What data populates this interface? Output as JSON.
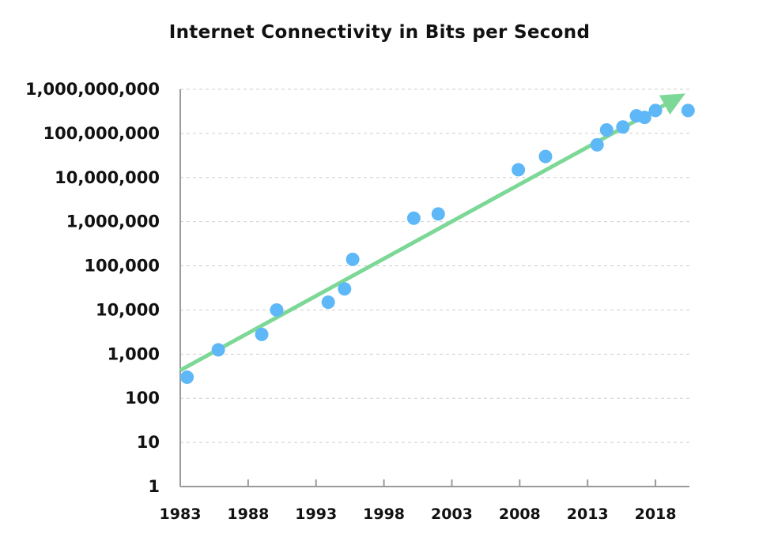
{
  "chart_data": {
    "type": "scatter",
    "title": "Internet Connectivity in Bits per Second",
    "xlabel": "",
    "ylabel": "",
    "y_scale": "log",
    "xlim": [
      1983,
      2020.5
    ],
    "ylim": [
      1,
      1000000000
    ],
    "grid": true,
    "legend": "none",
    "x_ticks": [
      1983,
      1988,
      1993,
      1998,
      2003,
      2008,
      2013,
      2018
    ],
    "x_tick_labels": [
      "1983",
      "1988",
      "1993",
      "1998",
      "2003",
      "2008",
      "2013",
      "2018"
    ],
    "y_ticks": [
      1,
      10,
      100,
      1000,
      10000,
      100000,
      1000000,
      10000000,
      100000000,
      1000000000
    ],
    "y_tick_labels": [
      "1",
      "10",
      "100",
      "1,000",
      "10,000",
      "100,000",
      "1,000,000",
      "10,000,000",
      "100,000,000",
      "1,000,000,000"
    ],
    "series": [
      {
        "color": "#5eb8f7",
        "points": [
          {
            "x": 1983.5,
            "y": 300
          },
          {
            "x": 1985.8,
            "y": 1250
          },
          {
            "x": 1989.0,
            "y": 2800
          },
          {
            "x": 1990.1,
            "y": 10000
          },
          {
            "x": 1993.9,
            "y": 15000
          },
          {
            "x": 1995.1,
            "y": 30000
          },
          {
            "x": 1995.7,
            "y": 140000
          },
          {
            "x": 2000.2,
            "y": 1200000
          },
          {
            "x": 2002.0,
            "y": 1500000
          },
          {
            "x": 2007.9,
            "y": 15000000
          },
          {
            "x": 2009.9,
            "y": 30000000
          },
          {
            "x": 2013.7,
            "y": 55000000
          },
          {
            "x": 2014.4,
            "y": 120000000
          },
          {
            "x": 2015.6,
            "y": 140000000
          },
          {
            "x": 2016.6,
            "y": 250000000
          },
          {
            "x": 2017.2,
            "y": 230000000
          },
          {
            "x": 2018.0,
            "y": 330000000
          },
          {
            "x": 2020.4,
            "y": 330000000
          }
        ]
      }
    ],
    "trend_line": {
      "color": "#7dd897",
      "arrow": true,
      "start": {
        "x": 1983,
        "y": 430
      },
      "end": {
        "x": 2020.2,
        "y": 800000000
      }
    }
  }
}
